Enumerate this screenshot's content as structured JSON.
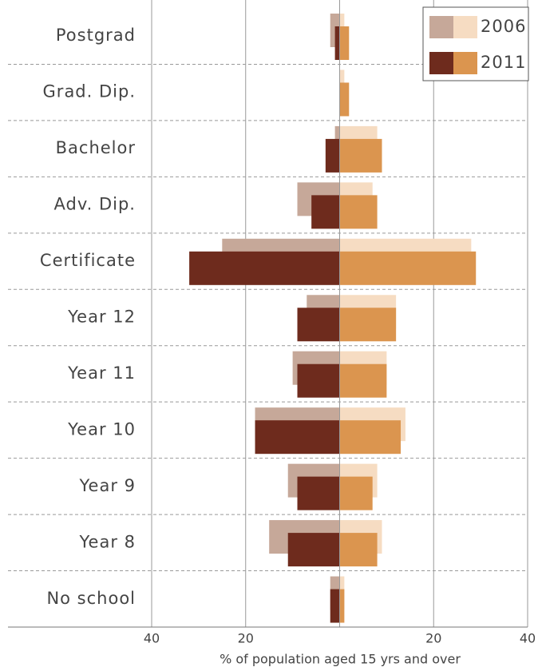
{
  "chart_data": {
    "type": "pyramid",
    "categories": [
      "Postgrad",
      "Grad. Dip.",
      "Bachelor",
      "Adv. Dip.",
      "Certificate",
      "Year 12",
      "Year 11",
      "Year 10",
      "Year 9",
      "Year 8",
      "No school"
    ],
    "series": [
      {
        "name": "2006",
        "colors": [
          "#c6a899",
          "#f6dcc2"
        ],
        "left": [
          -2,
          0,
          -1,
          -9,
          -25,
          -7,
          -10,
          -18,
          -11,
          -15,
          -2
        ],
        "right": [
          1,
          1,
          8,
          7,
          28,
          12,
          10,
          14,
          8,
          9,
          1
        ]
      },
      {
        "name": "2011",
        "colors": [
          "#6e2b1d",
          "#db954f"
        ],
        "left": [
          -1,
          0,
          -3,
          -6,
          -32,
          -9,
          -9,
          -18,
          -9,
          -11,
          -2
        ],
        "right": [
          2,
          2,
          9,
          8,
          29,
          12,
          10,
          13,
          7,
          8,
          1
        ]
      }
    ],
    "xlim": [
      -40,
      40
    ],
    "xticks": [
      {
        "value": -40,
        "label": "40"
      },
      {
        "value": -20,
        "label": "20"
      },
      {
        "value": 20,
        "label": "20"
      },
      {
        "value": 40,
        "label": "40"
      }
    ],
    "xlabel": "% of population aged 15 yrs and over",
    "grid": true
  }
}
